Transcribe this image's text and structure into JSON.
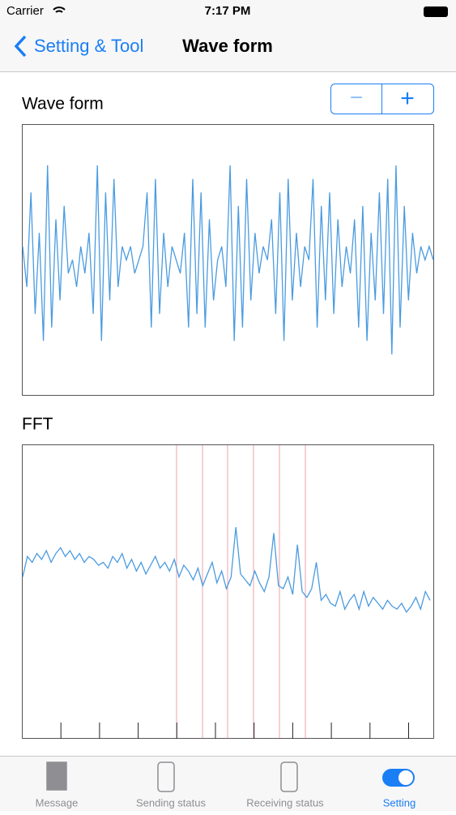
{
  "status_bar": {
    "carrier": "Carrier",
    "time": "7:17 PM"
  },
  "nav": {
    "back": "Setting & Tool",
    "title": "Wave form"
  },
  "stepper": {
    "minus": "−",
    "plus": "+"
  },
  "wave": {
    "label": "Wave form",
    "type": "line",
    "color": "#4a9be0",
    "ylim": [
      -1,
      1
    ],
    "values": [
      0.1,
      -0.2,
      0.5,
      -0.4,
      0.2,
      -0.6,
      0.7,
      -0.5,
      0.3,
      -0.3,
      0.4,
      -0.1,
      0.0,
      -0.2,
      0.1,
      -0.1,
      0.2,
      -0.4,
      0.7,
      -0.6,
      0.5,
      -0.3,
      0.6,
      -0.2,
      0.1,
      0.0,
      0.1,
      -0.1,
      0.0,
      0.1,
      0.5,
      -0.5,
      0.6,
      -0.4,
      0.2,
      -0.2,
      0.1,
      0.0,
      -0.1,
      0.2,
      -0.5,
      0.6,
      -0.4,
      0.5,
      -0.5,
      0.3,
      -0.3,
      0.0,
      0.1,
      -0.2,
      0.7,
      -0.6,
      0.4,
      -0.5,
      0.6,
      -0.3,
      0.2,
      -0.1,
      0.1,
      0.0,
      0.3,
      -0.4,
      0.5,
      -0.6,
      0.6,
      -0.3,
      0.2,
      -0.2,
      0.1,
      0.0,
      0.6,
      -0.5,
      0.4,
      -0.3,
      0.5,
      -0.4,
      0.3,
      -0.2,
      0.1,
      -0.1,
      0.3,
      -0.5,
      0.4,
      -0.6,
      0.2,
      -0.3,
      0.5,
      -0.4,
      0.6,
      -0.7,
      0.7,
      -0.5,
      0.4,
      -0.3,
      0.2,
      -0.1,
      0.1,
      0.0,
      0.1,
      0.0
    ]
  },
  "fft": {
    "label": "FFT",
    "type": "line",
    "color": "#4a9be0",
    "ylim": [
      0,
      100
    ],
    "values": [
      55,
      62,
      60,
      63,
      61,
      64,
      60,
      63,
      65,
      62,
      64,
      61,
      63,
      60,
      62,
      61,
      59,
      60,
      58,
      62,
      60,
      63,
      58,
      61,
      57,
      60,
      56,
      59,
      62,
      58,
      60,
      57,
      61,
      55,
      59,
      57,
      54,
      58,
      52,
      56,
      60,
      53,
      57,
      51,
      55,
      72,
      56,
      54,
      52,
      57,
      53,
      50,
      55,
      70,
      52,
      51,
      55,
      49,
      66,
      50,
      48,
      51,
      60,
      47,
      49,
      46,
      45,
      50,
      44,
      47,
      49,
      44,
      50,
      45,
      48,
      46,
      44,
      47,
      45,
      44,
      46,
      43,
      45,
      48,
      44,
      50,
      47
    ]
  },
  "tabs": [
    "Message",
    "Sending status",
    "Receiving status",
    "Setting"
  ]
}
